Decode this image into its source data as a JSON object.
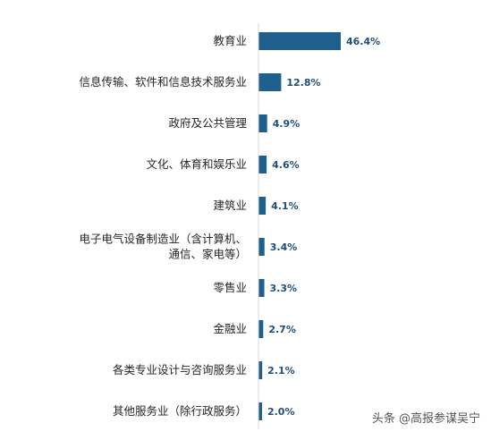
{
  "chart_data": {
    "type": "bar",
    "orientation": "horizontal",
    "categories": [
      [
        "教育业"
      ],
      [
        "信息传输、软件和信息技术服务业"
      ],
      [
        "政府及公共管理"
      ],
      [
        "文化、体育和娱乐业"
      ],
      [
        "建筑业"
      ],
      [
        "电子电气设备制造业（含计算机、",
        "通信、家电等）"
      ],
      [
        "零售业"
      ],
      [
        "金融业"
      ],
      [
        "各类专业设计与咨询服务业"
      ],
      [
        "其他服务业（除行政服务）"
      ]
    ],
    "values": [
      46.4,
      12.8,
      4.9,
      4.6,
      4.1,
      3.4,
      3.3,
      2.7,
      2.1,
      2.0
    ],
    "value_labels": [
      "46.4%",
      "12.8%",
      "4.9%",
      "4.6%",
      "4.1%",
      "3.4%",
      "3.3%",
      "2.7%",
      "2.1%",
      "2.0%"
    ],
    "bar_color": "#1f5f8e",
    "label_color": "#1f4e79",
    "title": "",
    "xlabel": "",
    "ylabel": "",
    "grid": false,
    "legend": "none"
  },
  "watermark": "头条 @高报参谋吴宁"
}
